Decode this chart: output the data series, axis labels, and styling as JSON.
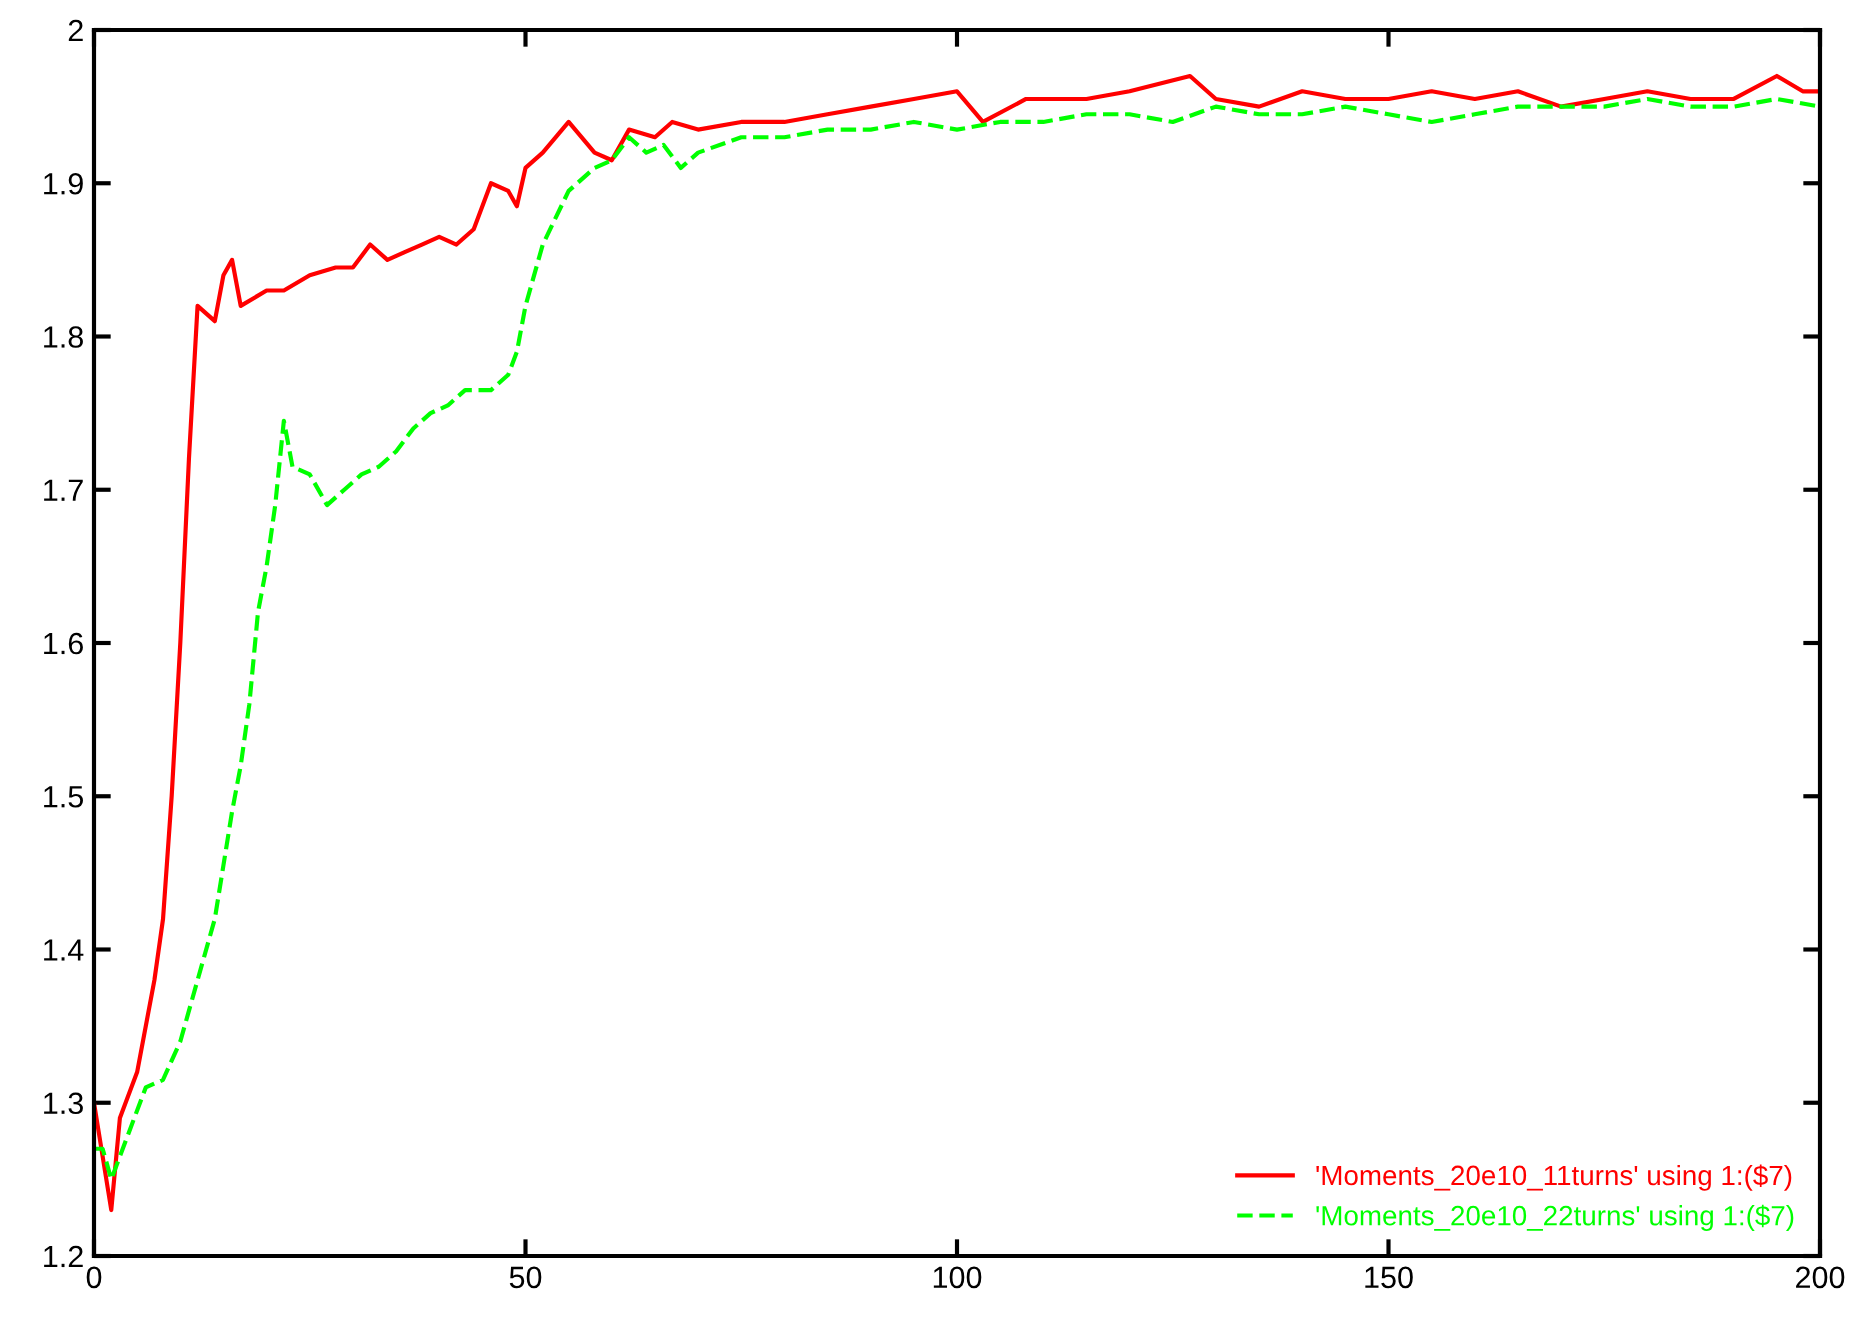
{
  "chart_data": {
    "type": "line",
    "xlim": [
      0,
      200
    ],
    "ylim": [
      1.2,
      2
    ],
    "xticks": [
      0,
      50,
      100,
      150,
      200
    ],
    "yticks": [
      1.2,
      1.3,
      1.4,
      1.5,
      1.6,
      1.7,
      1.8,
      1.9,
      2
    ],
    "grid": false,
    "legend": "bottom right",
    "marker": "none",
    "series": [
      {
        "name": "'Moments_20e10_11turns' using 1:($7)",
        "color": "#ff0000",
        "line_style": "solid",
        "x": [
          0,
          2,
          3,
          5,
          7,
          8,
          9,
          10,
          11,
          12,
          14,
          15,
          16,
          17,
          20,
          22,
          25,
          28,
          30,
          32,
          34,
          36,
          38,
          40,
          42,
          44,
          46,
          48,
          49,
          50,
          52,
          55,
          58,
          60,
          62,
          65,
          67,
          70,
          75,
          80,
          85,
          90,
          95,
          100,
          103,
          108,
          115,
          120,
          127,
          130,
          135,
          140,
          145,
          150,
          155,
          160,
          165,
          170,
          175,
          180,
          185,
          190,
          195,
          198,
          200
        ],
        "values": [
          1.3,
          1.23,
          1.29,
          1.32,
          1.38,
          1.42,
          1.5,
          1.6,
          1.72,
          1.82,
          1.81,
          1.84,
          1.85,
          1.82,
          1.83,
          1.83,
          1.84,
          1.845,
          1.845,
          1.86,
          1.85,
          1.855,
          1.86,
          1.865,
          1.86,
          1.87,
          1.9,
          1.895,
          1.885,
          1.91,
          1.92,
          1.94,
          1.92,
          1.915,
          1.935,
          1.93,
          1.94,
          1.935,
          1.94,
          1.94,
          1.945,
          1.95,
          1.955,
          1.96,
          1.94,
          1.955,
          1.955,
          1.96,
          1.97,
          1.955,
          1.95,
          1.96,
          1.955,
          1.955,
          1.96,
          1.955,
          1.96,
          1.95,
          1.955,
          1.96,
          1.955,
          1.955,
          1.97,
          1.96,
          1.96
        ]
      },
      {
        "name": "'Moments_20e10_22turns' using 1:($7)",
        "color": "#00ff00",
        "line_style": "dashed",
        "x": [
          0,
          1,
          2,
          4,
          6,
          8,
          10,
          12,
          14,
          16,
          17,
          18,
          19,
          20,
          21,
          22,
          23,
          25,
          27,
          29,
          31,
          33,
          35,
          37,
          39,
          41,
          43,
          46,
          48,
          49,
          50,
          52,
          55,
          58,
          60,
          62,
          64,
          66,
          68,
          70,
          75,
          80,
          85,
          90,
          95,
          100,
          105,
          110,
          115,
          120,
          125,
          130,
          135,
          140,
          145,
          150,
          155,
          160,
          165,
          170,
          175,
          180,
          185,
          190,
          195,
          200
        ],
        "values": [
          1.27,
          1.27,
          1.25,
          1.28,
          1.31,
          1.315,
          1.34,
          1.38,
          1.42,
          1.49,
          1.52,
          1.56,
          1.62,
          1.65,
          1.69,
          1.745,
          1.715,
          1.71,
          1.69,
          1.7,
          1.71,
          1.715,
          1.725,
          1.74,
          1.75,
          1.755,
          1.765,
          1.765,
          1.775,
          1.79,
          1.82,
          1.86,
          1.895,
          1.91,
          1.915,
          1.93,
          1.92,
          1.925,
          1.91,
          1.92,
          1.93,
          1.93,
          1.935,
          1.935,
          1.94,
          1.935,
          1.94,
          1.94,
          1.945,
          1.945,
          1.94,
          1.95,
          1.945,
          1.945,
          1.95,
          1.945,
          1.94,
          1.945,
          1.95,
          1.95,
          1.95,
          1.955,
          1.95,
          1.95,
          1.955,
          1.95
        ]
      }
    ]
  }
}
